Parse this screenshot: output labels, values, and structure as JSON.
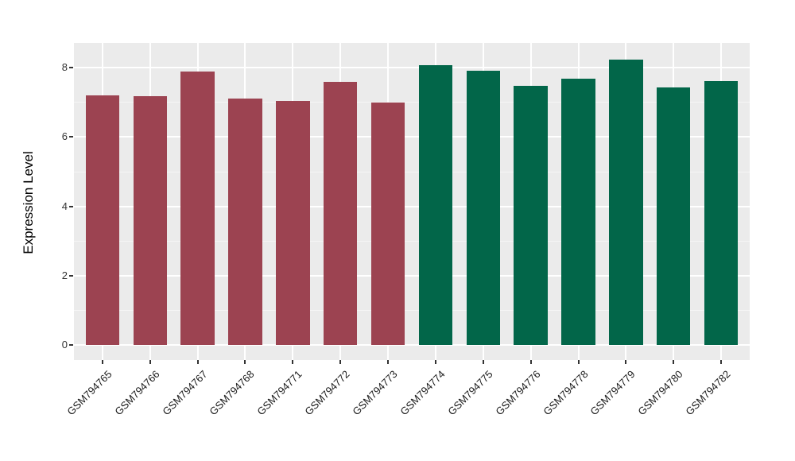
{
  "chart_data": {
    "type": "bar",
    "title": "",
    "xlabel": "",
    "ylabel": "Expression Level",
    "categories": [
      "GSM794765",
      "GSM794766",
      "GSM794767",
      "GSM794768",
      "GSM794771",
      "GSM794772",
      "GSM794773",
      "GSM794774",
      "GSM794775",
      "GSM794776",
      "GSM794778",
      "GSM794779",
      "GSM794780",
      "GSM794782"
    ],
    "values": [
      7.2,
      7.18,
      7.9,
      7.11,
      7.05,
      7.6,
      7.0,
      8.08,
      7.92,
      7.47,
      7.68,
      8.24,
      7.43,
      7.62
    ],
    "bar_colors": [
      "#9c4351",
      "#9c4351",
      "#9c4351",
      "#9c4351",
      "#9c4351",
      "#9c4351",
      "#9c4351",
      "#026649",
      "#026649",
      "#026649",
      "#026649",
      "#026649",
      "#026649",
      "#026649"
    ],
    "group_colors": {
      "left_group": "#9c4351",
      "right_group": "#026649"
    },
    "ylim": [
      0,
      8.72
    ],
    "yticks": [
      0,
      2,
      4,
      6,
      8
    ],
    "yticks_minor": [
      1,
      3,
      5,
      7
    ],
    "grid": "on",
    "legend": "none",
    "panel_background": "#ebebeb",
    "grid_color": "#ffffff",
    "tick_color": "#333333"
  }
}
